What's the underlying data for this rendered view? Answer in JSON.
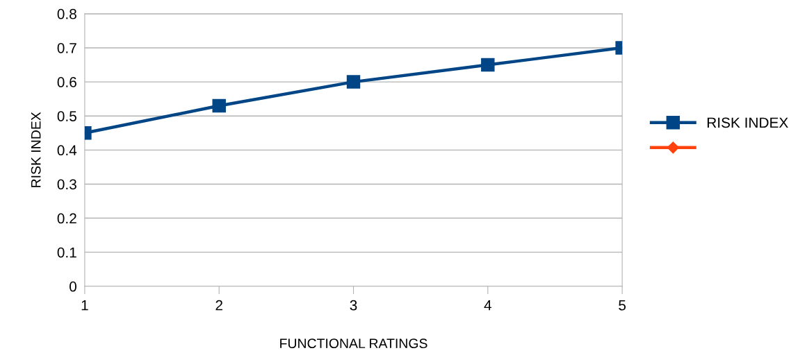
{
  "chart_data": {
    "type": "line",
    "xlabel": "FUNCTIONAL RATINGS",
    "ylabel": "RISK INDEX",
    "categories": [
      "1",
      "2",
      "3",
      "4",
      "5"
    ],
    "series": [
      {
        "name": "RISK INDEX",
        "color": "#004586",
        "marker": "square",
        "values": [
          0.45,
          0.53,
          0.6,
          0.65,
          0.7
        ]
      },
      {
        "color": "#ff420e",
        "marker": "diamond",
        "values": [
          null,
          null,
          null,
          null,
          null
        ]
      }
    ],
    "ylim": [
      0,
      0.8
    ],
    "yticks": [
      0,
      0.1,
      0.2,
      0.3,
      0.4,
      0.5,
      0.6,
      0.7,
      0.8
    ],
    "grid": "y",
    "legend": "right",
    "line_style": "solid"
  }
}
